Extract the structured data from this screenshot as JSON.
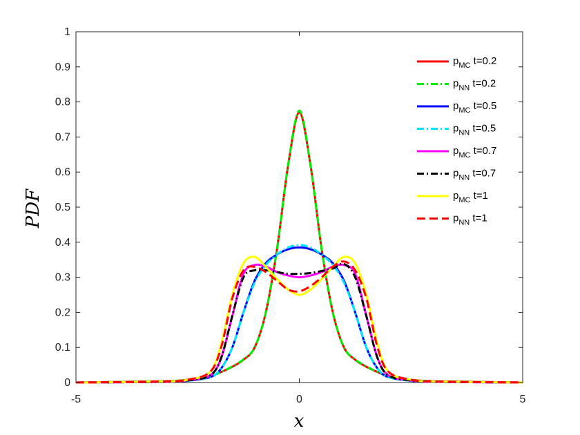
{
  "chart_data": {
    "type": "line",
    "title": "",
    "xlabel": "x",
    "ylabel": "PDF",
    "xlim": [
      -5,
      5
    ],
    "ylim": [
      0,
      1
    ],
    "xticks": [
      "-5",
      "0",
      "5"
    ],
    "yticks": [
      "0",
      "0.1",
      "0.2",
      "0.3",
      "0.4",
      "0.5",
      "0.6",
      "0.7",
      "0.8",
      "0.9",
      "1"
    ],
    "grid": false,
    "legend_position": "top-right",
    "series": [
      {
        "name": "p_MC t=0.2",
        "label_base": "p",
        "label_sub": "MC",
        "label_rest": " t=0.2",
        "color": "#ff0000",
        "dash": "solid",
        "x": [
          -5,
          -3,
          -2.5,
          -2,
          -1.75,
          -1.5,
          -1.25,
          -1,
          -0.75,
          -0.5,
          -0.25,
          0,
          0.25,
          0.5,
          0.75,
          1,
          1.25,
          1.5,
          1.75,
          2,
          2.5,
          3,
          5
        ],
        "y": [
          0,
          0.004,
          0.008,
          0.018,
          0.03,
          0.045,
          0.065,
          0.1,
          0.2,
          0.38,
          0.62,
          0.77,
          0.62,
          0.38,
          0.2,
          0.1,
          0.065,
          0.045,
          0.03,
          0.018,
          0.008,
          0.004,
          0
        ]
      },
      {
        "name": "p_NN t=0.2",
        "label_base": "p",
        "label_sub": "NN",
        "label_rest": " t=0.2",
        "color": "#00ee00",
        "dash": "dashdot",
        "x": [
          -5,
          -3,
          -2.5,
          -2,
          -1.75,
          -1.5,
          -1.25,
          -1,
          -0.75,
          -0.5,
          -0.25,
          0,
          0.25,
          0.5,
          0.75,
          1,
          1.25,
          1.5,
          1.75,
          2,
          2.5,
          3,
          5
        ],
        "y": [
          0,
          0.004,
          0.008,
          0.018,
          0.03,
          0.046,
          0.066,
          0.1,
          0.2,
          0.38,
          0.62,
          0.775,
          0.62,
          0.38,
          0.2,
          0.1,
          0.066,
          0.046,
          0.03,
          0.018,
          0.008,
          0.004,
          0
        ]
      },
      {
        "name": "p_MC t=0.5",
        "label_base": "p",
        "label_sub": "MC",
        "label_rest": " t=0.5",
        "color": "#0000ff",
        "dash": "solid",
        "x": [
          -5,
          -3,
          -2.5,
          -2,
          -1.75,
          -1.5,
          -1.25,
          -1,
          -0.75,
          -0.5,
          -0.25,
          0,
          0.25,
          0.5,
          0.75,
          1,
          1.25,
          1.5,
          1.75,
          2,
          2.5,
          3,
          5
        ],
        "y": [
          0,
          0.002,
          0.005,
          0.015,
          0.04,
          0.1,
          0.2,
          0.29,
          0.34,
          0.365,
          0.38,
          0.385,
          0.38,
          0.365,
          0.34,
          0.29,
          0.2,
          0.1,
          0.04,
          0.015,
          0.005,
          0.002,
          0
        ]
      },
      {
        "name": "p_NN t=0.5",
        "label_base": "p",
        "label_sub": "NN",
        "label_rest": " t=0.5",
        "color": "#00e5ff",
        "dash": "dashdot",
        "x": [
          -5,
          -3,
          -2.5,
          -2,
          -1.75,
          -1.5,
          -1.25,
          -1,
          -0.75,
          -0.5,
          -0.25,
          0,
          0.25,
          0.5,
          0.75,
          1,
          1.25,
          1.5,
          1.75,
          2,
          2.5,
          3,
          5
        ],
        "y": [
          0,
          0.002,
          0.005,
          0.015,
          0.04,
          0.1,
          0.2,
          0.285,
          0.335,
          0.365,
          0.385,
          0.392,
          0.385,
          0.365,
          0.335,
          0.285,
          0.2,
          0.1,
          0.04,
          0.015,
          0.005,
          0.002,
          0
        ]
      },
      {
        "name": "p_MC t=0.7",
        "label_base": "p",
        "label_sub": "MC",
        "label_rest": " t=0.7",
        "color": "#ff00ff",
        "dash": "solid",
        "x": [
          -5,
          -3,
          -2.5,
          -2,
          -1.75,
          -1.5,
          -1.25,
          -1,
          -0.75,
          -0.5,
          -0.25,
          0,
          0.25,
          0.5,
          0.75,
          1,
          1.25,
          1.5,
          1.75,
          2,
          2.5,
          3,
          5
        ],
        "y": [
          0,
          0.002,
          0.006,
          0.02,
          0.07,
          0.19,
          0.31,
          0.335,
          0.33,
          0.315,
          0.305,
          0.3,
          0.305,
          0.315,
          0.33,
          0.335,
          0.31,
          0.19,
          0.07,
          0.02,
          0.006,
          0.002,
          0
        ]
      },
      {
        "name": "p_NN t=0.7",
        "label_base": "p",
        "label_sub": "NN",
        "label_rest": " t=0.7",
        "color": "#000000",
        "dash": "dashdot",
        "x": [
          -5,
          -3,
          -2.5,
          -2,
          -1.75,
          -1.5,
          -1.25,
          -1,
          -0.75,
          -0.5,
          -0.25,
          0,
          0.25,
          0.5,
          0.75,
          1,
          1.25,
          1.5,
          1.75,
          2,
          2.5,
          3,
          5
        ],
        "y": [
          0,
          0.002,
          0.006,
          0.02,
          0.07,
          0.19,
          0.3,
          0.32,
          0.32,
          0.315,
          0.31,
          0.31,
          0.312,
          0.318,
          0.325,
          0.338,
          0.3,
          0.19,
          0.07,
          0.02,
          0.006,
          0.002,
          0
        ]
      },
      {
        "name": "p_MC t=1",
        "label_base": "p",
        "label_sub": "MC",
        "label_rest": " t=1",
        "color": "#ffff00",
        "dash": "solid",
        "x": [
          -5,
          -3,
          -2.5,
          -2,
          -1.75,
          -1.5,
          -1.25,
          -1,
          -0.75,
          -0.5,
          -0.25,
          0,
          0.25,
          0.5,
          0.75,
          1,
          1.25,
          1.5,
          1.75,
          2,
          2.5,
          3,
          5
        ],
        "y": [
          0,
          0.003,
          0.008,
          0.03,
          0.11,
          0.25,
          0.34,
          0.358,
          0.33,
          0.295,
          0.265,
          0.25,
          0.265,
          0.295,
          0.33,
          0.358,
          0.34,
          0.25,
          0.11,
          0.03,
          0.008,
          0.003,
          0
        ]
      },
      {
        "name": "p_NN t=1",
        "label_base": "p",
        "label_sub": "NN",
        "label_rest": " t=1",
        "color": "#ff0000",
        "dash": "dash",
        "x": [
          -5,
          -3,
          -2.5,
          -2,
          -1.75,
          -1.5,
          -1.25,
          -1,
          -0.75,
          -0.5,
          -0.25,
          0,
          0.25,
          0.5,
          0.75,
          1,
          1.25,
          1.5,
          1.75,
          2,
          2.5,
          3,
          5
        ],
        "y": [
          0,
          0.003,
          0.008,
          0.03,
          0.1,
          0.24,
          0.32,
          0.33,
          0.315,
          0.29,
          0.265,
          0.26,
          0.275,
          0.3,
          0.33,
          0.345,
          0.32,
          0.24,
          0.1,
          0.03,
          0.008,
          0.003,
          0
        ]
      }
    ]
  }
}
